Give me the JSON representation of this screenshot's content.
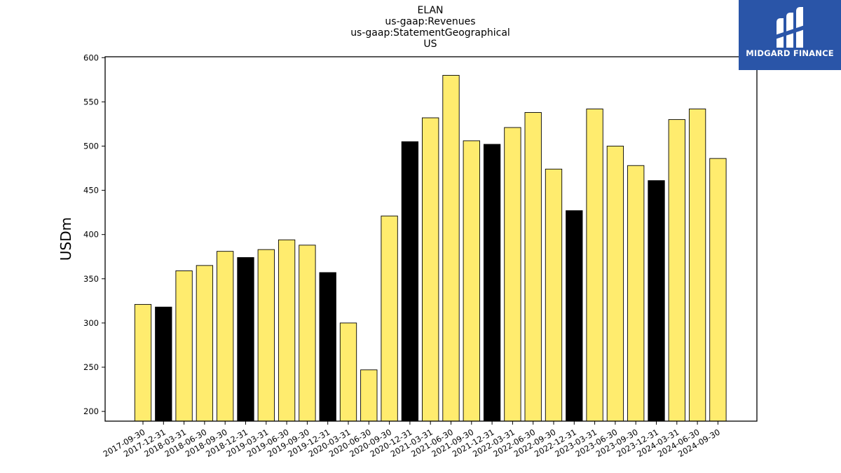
{
  "chart_data": {
    "type": "bar",
    "title_lines": [
      "ELAN",
      "us-gaap:Revenues",
      "us-gaap:StatementGeographical",
      "US"
    ],
    "ylabel": "USDm",
    "xlabel": "",
    "ylim": [
      189,
      601
    ],
    "yticks": [
      200,
      250,
      300,
      350,
      400,
      450,
      500,
      550,
      600
    ],
    "categories": [
      "2017-09-30",
      "2017-12-31",
      "2018-03-31",
      "2018-06-30",
      "2018-09-30",
      "2018-12-31",
      "2019-03-31",
      "2019-06-30",
      "2019-09-30",
      "2019-12-31",
      "2020-03-31",
      "2020-06-30",
      "2020-09-30",
      "2020-12-31",
      "2021-03-31",
      "2021-06-30",
      "2021-09-30",
      "2021-12-31",
      "2022-03-31",
      "2022-06-30",
      "2022-09-30",
      "2022-12-31",
      "2023-03-31",
      "2023-06-30",
      "2023-09-30",
      "2023-12-31",
      "2024-03-31",
      "2024-06-30",
      "2024-09-30"
    ],
    "values": [
      321,
      318,
      359,
      365,
      381,
      374,
      383,
      394,
      388,
      357,
      300,
      247,
      421,
      505,
      532,
      580,
      506,
      502,
      521,
      538,
      474,
      427,
      542,
      500,
      478,
      461,
      530,
      542,
      486
    ],
    "year_end_color": "#000000",
    "quarter_color": "#ffec6e",
    "grid": false,
    "legend": "none"
  },
  "logo": {
    "text": "MIDGARD FINANCE",
    "icon": "midgard-logo-mark",
    "background": "#2a55a8"
  }
}
